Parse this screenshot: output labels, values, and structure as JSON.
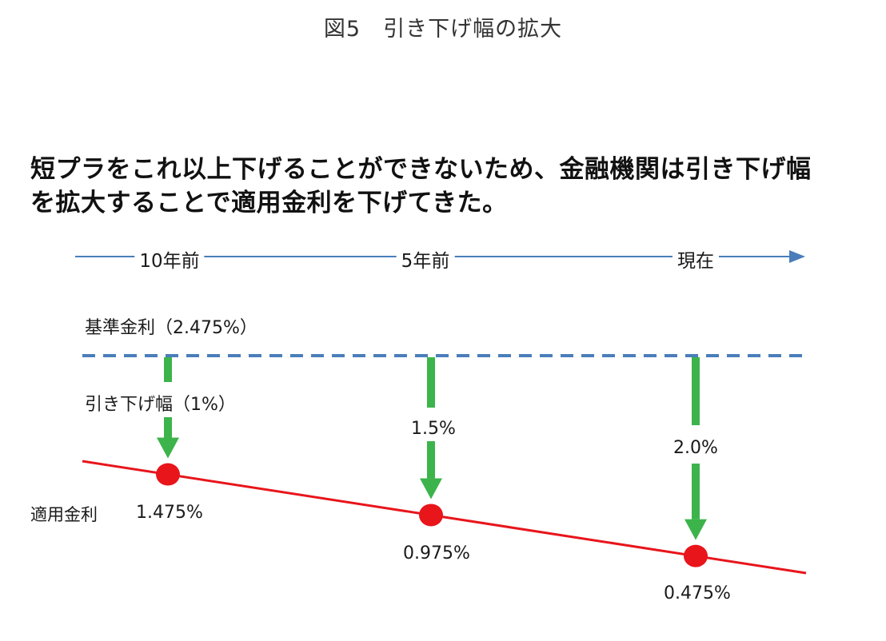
{
  "figure_title": "図5　引き下げ幅の拡大",
  "headline": {
    "line1": "短プラをこれ以上下げることができないため、金融機関は引き下げ幅",
    "line2": "を拡大することで適用金利を下げてきた。"
  },
  "timeline": {
    "points": [
      "10年前",
      "5年前",
      "現在"
    ]
  },
  "base_rate": {
    "label": "基準金利（2.475%）",
    "value": 2.475
  },
  "reductions": [
    {
      "time": "10年前",
      "label": "引き下げ幅（1%）",
      "value": 1.0
    },
    {
      "time": "5年前",
      "label": "1.5%",
      "value": 1.5
    },
    {
      "time": "現在",
      "label": "2.0%",
      "value": 2.0
    }
  ],
  "applied_rate": {
    "label": "適用金利",
    "points": [
      {
        "time": "10年前",
        "label": "1.475%",
        "value": 1.475
      },
      {
        "time": "5年前",
        "label": "0.975%",
        "value": 0.975
      },
      {
        "time": "現在",
        "label": "0.475%",
        "value": 0.475
      }
    ]
  },
  "colors": {
    "timeline": "#4a7ebb",
    "base_rate_line": "#4a7ebb",
    "arrow": "#3cb44b",
    "applied_line": "#e8151b",
    "dot": "#e8151b"
  }
}
